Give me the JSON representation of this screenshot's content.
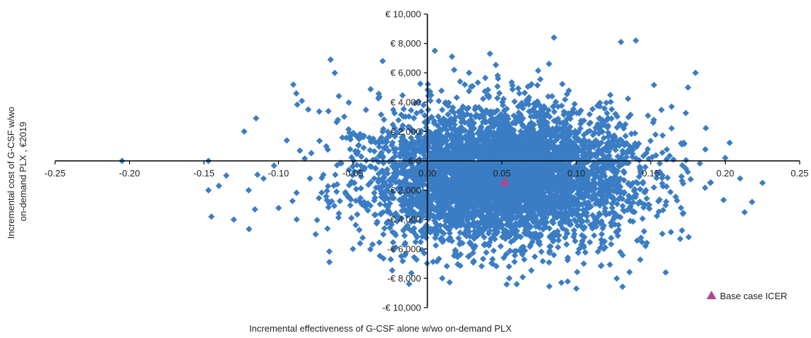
{
  "chart_data": {
    "type": "scatter",
    "title": "",
    "xlabel": "Incremental effectiveness of G-CSF alone w/wo on-demand PLX",
    "ylabel_lines": [
      "Incremental cost of G-CSF w/wo",
      "on-demand PLX , €2019"
    ],
    "xlim": [
      -0.25,
      0.25
    ],
    "ylim": [
      -10000,
      10000
    ],
    "x_ticks": [
      -0.25,
      -0.2,
      -0.15,
      -0.1,
      -0.05,
      0.0,
      0.05,
      0.1,
      0.15,
      0.2,
      0.25
    ],
    "x_tick_labels": [
      "-0.25",
      "-0.20",
      "-0.15",
      "-0.10",
      "-0.05",
      "0.00",
      "0.05",
      "0.10",
      "0.15",
      "0.20",
      "0.25"
    ],
    "y_ticks": [
      -10000,
      -8000,
      -6000,
      -4000,
      -2000,
      0,
      2000,
      4000,
      6000,
      8000,
      10000
    ],
    "y_tick_labels": [
      "-€ 10,000",
      "-€ 8,000",
      "-€ 6,000",
      "-€ 4,000",
      "-€ 2,000",
      "€ 0",
      "€ 2,000",
      "€ 4,000",
      "€ 6,000",
      "€ 8,000",
      "€ 10,000"
    ],
    "grid": false,
    "legend_position": "bottom-right",
    "colors": {
      "simulations": "#3b7dc4",
      "base_case": "#b0488f",
      "axis": "#000000"
    },
    "series": [
      {
        "name": "",
        "marker": "diamond",
        "distribution": {
          "center_x": 0.05,
          "center_y": -1000,
          "sd_x": 0.045,
          "sd_y": 2300,
          "approx_count": 5000
        },
        "outliers": [
          [
            -0.205,
            0
          ],
          [
            -0.147,
            0
          ],
          [
            -0.147,
            -2000
          ],
          [
            -0.145,
            -3800
          ],
          [
            -0.14,
            -1700
          ],
          [
            -0.135,
            -1000
          ],
          [
            -0.13,
            -4000
          ],
          [
            -0.123,
            2000
          ],
          [
            -0.12,
            -2000
          ],
          [
            -0.115,
            2900
          ],
          [
            -0.11,
            -1200
          ],
          [
            -0.09,
            5200
          ],
          [
            -0.088,
            4600
          ],
          [
            -0.08,
            3500
          ],
          [
            -0.075,
            -5000
          ],
          [
            -0.065,
            6900
          ],
          [
            -0.05,
            -6000
          ],
          [
            -0.03,
            6800
          ],
          [
            0.005,
            7500
          ],
          [
            0.01,
            -8000
          ],
          [
            0.018,
            6200
          ],
          [
            0.028,
            6000
          ],
          [
            0.042,
            7300
          ],
          [
            0.055,
            -8000
          ],
          [
            0.06,
            -8400
          ],
          [
            0.085,
            8400
          ],
          [
            0.09,
            -8300
          ],
          [
            0.1,
            -8700
          ],
          [
            0.105,
            -7000
          ],
          [
            0.13,
            8100
          ],
          [
            0.14,
            8200
          ],
          [
            0.16,
            -7600
          ],
          [
            0.175,
            5000
          ],
          [
            0.18,
            6000
          ],
          [
            0.19,
            -1500
          ],
          [
            0.2,
            200
          ],
          [
            0.21,
            -1200
          ],
          [
            0.213,
            -3500
          ],
          [
            0.218,
            -2800
          ],
          [
            0.225,
            -1500
          ]
        ]
      },
      {
        "name": "Base case ICER",
        "marker": "triangle",
        "points": [
          [
            0.052,
            -1400
          ]
        ]
      }
    ]
  }
}
